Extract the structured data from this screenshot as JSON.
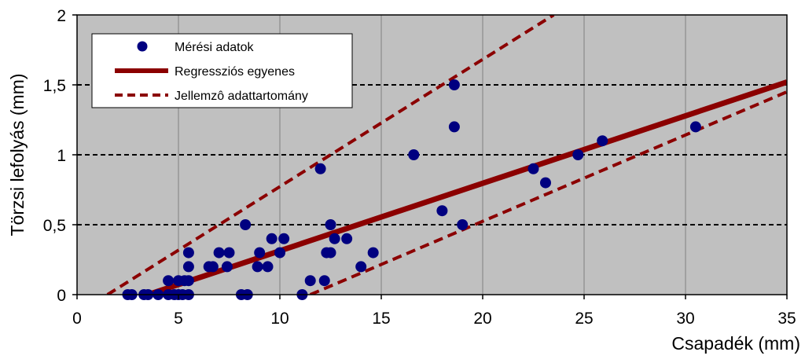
{
  "chart_data": {
    "type": "scatter",
    "xlabel": "Csapadék (mm)",
    "ylabel": "Törzsi lefolyás (mm)",
    "xlim": [
      0,
      35
    ],
    "ylim": [
      0,
      2
    ],
    "xticks": [
      0,
      5,
      10,
      15,
      20,
      25,
      30,
      35
    ],
    "yticks": [
      0,
      0.5,
      1,
      1.5,
      2
    ],
    "xtick_labels": [
      "0",
      "5",
      "10",
      "15",
      "20",
      "25",
      "30",
      "35"
    ],
    "ytick_labels": [
      "0",
      "0,5",
      "1",
      "1,5",
      "2"
    ],
    "grid": {
      "x": "solid-gray",
      "y": "dashed-black"
    },
    "background": "#c0c0c0",
    "legend_position": "top-left",
    "series": [
      {
        "name": "Mérési adatok",
        "kind": "scatter",
        "color": "#000080",
        "points": [
          [
            2.5,
            0
          ],
          [
            2.7,
            0
          ],
          [
            3.3,
            0
          ],
          [
            3.5,
            0
          ],
          [
            4.0,
            0
          ],
          [
            4.5,
            0
          ],
          [
            4.8,
            0
          ],
          [
            5.0,
            0
          ],
          [
            5.2,
            0
          ],
          [
            5.5,
            0
          ],
          [
            8.1,
            0
          ],
          [
            8.4,
            0
          ],
          [
            11.1,
            0
          ],
          [
            4.5,
            0.1
          ],
          [
            5.0,
            0.1
          ],
          [
            5.3,
            0.1
          ],
          [
            5.5,
            0.1
          ],
          [
            11.5,
            0.1
          ],
          [
            12.2,
            0.1
          ],
          [
            5.5,
            0.2
          ],
          [
            6.5,
            0.2
          ],
          [
            6.7,
            0.2
          ],
          [
            7.4,
            0.2
          ],
          [
            8.9,
            0.2
          ],
          [
            9.4,
            0.2
          ],
          [
            14.0,
            0.2
          ],
          [
            5.5,
            0.3
          ],
          [
            7.0,
            0.3
          ],
          [
            7.5,
            0.3
          ],
          [
            9.0,
            0.3
          ],
          [
            10.0,
            0.3
          ],
          [
            12.3,
            0.3
          ],
          [
            12.5,
            0.3
          ],
          [
            14.6,
            0.3
          ],
          [
            9.6,
            0.4
          ],
          [
            10.2,
            0.4
          ],
          [
            12.7,
            0.4
          ],
          [
            13.3,
            0.4
          ],
          [
            8.3,
            0.5
          ],
          [
            12.5,
            0.5
          ],
          [
            19.0,
            0.5
          ],
          [
            18.0,
            0.6
          ],
          [
            23.1,
            0.8
          ],
          [
            12.0,
            0.9
          ],
          [
            22.5,
            0.9
          ],
          [
            16.6,
            1.0
          ],
          [
            24.7,
            1.0
          ],
          [
            25.9,
            1.1
          ],
          [
            18.6,
            1.2
          ],
          [
            30.5,
            1.2
          ],
          [
            18.6,
            1.5
          ]
        ]
      },
      {
        "name": "Regressziós egyenes",
        "kind": "line",
        "color": "#8b0000",
        "style": "solid",
        "x": [
          3.5,
          35
        ],
        "y": [
          0,
          1.52
        ]
      },
      {
        "name": "Jellemzô adattartomány",
        "kind": "line",
        "color": "#8b0000",
        "style": "dashed",
        "x": [
          1.5,
          23.5
        ],
        "y": [
          0,
          2.0
        ]
      },
      {
        "name": "",
        "kind": "line",
        "color": "#8b0000",
        "style": "dashed",
        "x": [
          11.5,
          35
        ],
        "y": [
          0,
          1.45
        ]
      }
    ]
  }
}
